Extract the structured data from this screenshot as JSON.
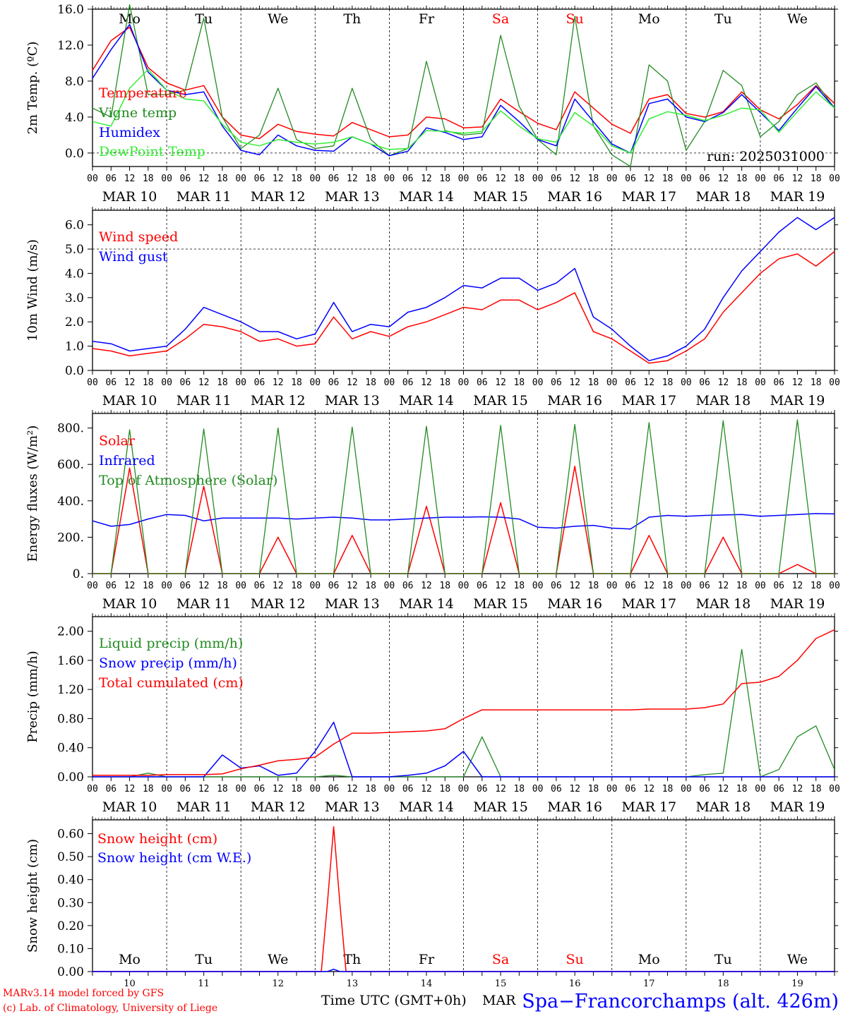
{
  "footer": {
    "model_line": "MARv3.14 model forced by GFS",
    "credit_line": "(c) Lab. of Climatology, University of Liege",
    "xlabel": "Time UTC (GMT+0h)",
    "month_overlap": "MAR",
    "station": "Spa−Francorchamps (alt. 426m)"
  },
  "days": {
    "names": [
      "Mo",
      "Tu",
      "We",
      "Th",
      "Fr",
      "Sa",
      "Su",
      "Mo",
      "Tu",
      "We"
    ],
    "weekend_color": "#ff0000",
    "dates": [
      "MAR 10",
      "MAR 11",
      "MAR 12",
      "MAR 13",
      "MAR 14",
      "MAR 15",
      "MAR 16",
      "MAR 17",
      "MAR 18",
      "MAR 19"
    ],
    "numbers": [
      "10",
      "11",
      "12",
      "13",
      "14",
      "15",
      "16",
      "17",
      "18",
      "19"
    ],
    "hour_ticks": [
      "00",
      "06",
      "12",
      "18"
    ],
    "final_tick": "00"
  },
  "chart_data": [
    {
      "type": "line",
      "ylabel": "2m Temp. (ºC)",
      "ylim": [
        -1.5,
        16
      ],
      "yticks": [
        "0.0",
        "4.0",
        "8.0",
        "12.0",
        "16.0"
      ],
      "ytick_values": [
        0,
        4,
        8,
        12,
        16
      ],
      "reference_line": 0,
      "annotation": "run: 2025031000",
      "x_hours": [
        0,
        6,
        12,
        18,
        24,
        30,
        36,
        42,
        48,
        54,
        60,
        66,
        72,
        78,
        84,
        90,
        96,
        102,
        108,
        114,
        120,
        126,
        132,
        138,
        144,
        150,
        156,
        162,
        168,
        174,
        180,
        186,
        192,
        198,
        204,
        210,
        216,
        222,
        228,
        234,
        240
      ],
      "series": [
        {
          "name": "Temperature",
          "color": "#ff0000",
          "values": [
            9.2,
            12.5,
            14.0,
            9.5,
            7.8,
            7.0,
            7.5,
            4.0,
            2.0,
            1.6,
            3.2,
            2.4,
            2.1,
            1.9,
            3.4,
            2.6,
            1.8,
            2.0,
            4.0,
            3.8,
            2.8,
            2.9,
            6.0,
            4.6,
            3.3,
            2.6,
            6.8,
            5.0,
            3.2,
            2.2,
            6.0,
            6.5,
            4.4,
            4.0,
            4.6,
            6.8,
            4.8,
            3.8,
            5.4,
            7.5,
            5.5
          ]
        },
        {
          "name": "Vigne temp",
          "color": "#228b22",
          "values": [
            5.0,
            4.0,
            16.5,
            6.5,
            6.5,
            7.0,
            15.0,
            4.0,
            0.5,
            2.0,
            7.2,
            1.5,
            0.5,
            0.8,
            7.2,
            1.5,
            -0.3,
            0.5,
            10.2,
            2.5,
            2.0,
            2.2,
            13.1,
            5.2,
            1.5,
            -0.2,
            15.2,
            3.0,
            -0.2,
            -1.5,
            9.8,
            8.0,
            0.3,
            3.5,
            9.2,
            7.5,
            1.8,
            3.5,
            6.5,
            7.8,
            5.0
          ]
        },
        {
          "name": "Humidex",
          "color": "#0000ff",
          "values": [
            8.3,
            11.5,
            14.3,
            9.0,
            7.0,
            6.5,
            6.8,
            3.0,
            0.3,
            -0.2,
            2.0,
            0.8,
            0.3,
            0.2,
            1.8,
            1.0,
            -0.3,
            0.2,
            2.8,
            2.3,
            1.5,
            1.8,
            5.3,
            3.5,
            1.5,
            0.8,
            6.0,
            3.5,
            1.0,
            0.0,
            5.5,
            6.0,
            4.0,
            3.5,
            4.5,
            6.5,
            4.5,
            2.5,
            5.0,
            7.4,
            5.0
          ]
        },
        {
          "name": "DewPoint Temp",
          "color": "#33ee33",
          "values": [
            3.5,
            3.0,
            7.2,
            9.3,
            7.0,
            6.0,
            5.8,
            3.2,
            1.2,
            0.8,
            1.5,
            1.2,
            1.0,
            1.2,
            1.8,
            1.0,
            0.4,
            0.5,
            2.5,
            2.4,
            2.2,
            2.4,
            4.7,
            3.0,
            1.6,
            1.2,
            4.5,
            3.0,
            0.8,
            0.0,
            3.8,
            4.6,
            4.2,
            3.6,
            4.2,
            5.0,
            4.8,
            2.3,
            4.6,
            6.8,
            5.0
          ]
        }
      ]
    },
    {
      "type": "line",
      "ylabel": "10m Wind (m/s)",
      "ylim": [
        0,
        6.6
      ],
      "yticks": [
        "0.0",
        "1.0",
        "2.0",
        "3.0",
        "4.0",
        "5.0",
        "6.0"
      ],
      "ytick_values": [
        0,
        1,
        2,
        3,
        4,
        5,
        6
      ],
      "reference_line": 5,
      "x_hours": [
        0,
        6,
        12,
        18,
        24,
        30,
        36,
        42,
        48,
        54,
        60,
        66,
        72,
        78,
        84,
        90,
        96,
        102,
        108,
        114,
        120,
        126,
        132,
        138,
        144,
        150,
        156,
        162,
        168,
        174,
        180,
        186,
        192,
        198,
        204,
        210,
        216,
        222,
        228,
        234,
        240
      ],
      "series": [
        {
          "name": "Wind speed",
          "color": "#ff0000",
          "values": [
            0.9,
            0.8,
            0.6,
            0.7,
            0.8,
            1.3,
            1.9,
            1.8,
            1.6,
            1.2,
            1.3,
            1.0,
            1.1,
            2.2,
            1.3,
            1.6,
            1.4,
            1.8,
            2.0,
            2.3,
            2.6,
            2.5,
            2.9,
            2.9,
            2.5,
            2.8,
            3.2,
            1.6,
            1.3,
            0.8,
            0.3,
            0.4,
            0.8,
            1.3,
            2.4,
            3.2,
            4.0,
            4.6,
            4.8,
            4.3,
            4.9
          ]
        },
        {
          "name": "Wind gust",
          "color": "#0000ff",
          "values": [
            1.2,
            1.1,
            0.8,
            0.9,
            1.0,
            1.7,
            2.6,
            2.3,
            2.0,
            1.6,
            1.6,
            1.3,
            1.5,
            2.8,
            1.6,
            1.9,
            1.8,
            2.4,
            2.6,
            3.0,
            3.5,
            3.4,
            3.8,
            3.8,
            3.3,
            3.6,
            4.2,
            2.2,
            1.7,
            1.0,
            0.4,
            0.6,
            1.0,
            1.7,
            3.0,
            4.1,
            4.9,
            5.7,
            6.3,
            5.8,
            6.3
          ]
        }
      ]
    },
    {
      "type": "line",
      "ylabel": "Energy fluxes (W/m²)",
      "ylim": [
        0,
        880
      ],
      "yticks": [
        "0.",
        "200.",
        "400.",
        "600.",
        "800."
      ],
      "ytick_values": [
        0,
        200,
        400,
        600,
        800
      ],
      "x_hours": [
        0,
        6,
        12,
        18,
        24,
        30,
        36,
        42,
        48,
        54,
        60,
        66,
        72,
        78,
        84,
        90,
        96,
        102,
        108,
        114,
        120,
        126,
        132,
        138,
        144,
        150,
        156,
        162,
        168,
        174,
        180,
        186,
        192,
        198,
        204,
        210,
        216,
        222,
        228,
        234,
        240
      ],
      "series": [
        {
          "name": "Solar",
          "color": "#ff0000",
          "values": [
            0,
            0,
            580,
            0,
            0,
            0,
            480,
            0,
            0,
            0,
            200,
            0,
            0,
            0,
            210,
            0,
            0,
            0,
            370,
            0,
            0,
            0,
            390,
            0,
            0,
            0,
            590,
            0,
            0,
            0,
            210,
            0,
            0,
            0,
            200,
            0,
            0,
            0,
            50,
            0,
            0
          ]
        },
        {
          "name": "Infrared",
          "color": "#0000ff",
          "values": [
            290,
            260,
            270,
            300,
            325,
            320,
            290,
            305,
            305,
            305,
            305,
            300,
            305,
            310,
            305,
            295,
            295,
            300,
            305,
            310,
            310,
            312,
            310,
            300,
            255,
            250,
            260,
            265,
            250,
            245,
            310,
            320,
            315,
            320,
            322,
            325,
            315,
            320,
            325,
            330,
            328
          ]
        },
        {
          "name": "Top of Atmosphere (Solar)",
          "color": "#228b22",
          "values": [
            0,
            0,
            790,
            0,
            0,
            0,
            795,
            0,
            0,
            0,
            800,
            0,
            0,
            0,
            805,
            0,
            0,
            0,
            810,
            0,
            0,
            0,
            815,
            0,
            0,
            0,
            820,
            0,
            0,
            0,
            830,
            0,
            0,
            0,
            840,
            0,
            0,
            0,
            845,
            0,
            0
          ]
        }
      ]
    },
    {
      "type": "line",
      "ylabel": "Precip (mm/h)",
      "ylim": [
        0,
        2.2
      ],
      "yticks": [
        "0.00",
        "0.40",
        "0.80",
        "1.20",
        "1.60",
        "2.00"
      ],
      "ytick_values": [
        0,
        0.4,
        0.8,
        1.2,
        1.6,
        2.0
      ],
      "x_hours": [
        0,
        6,
        12,
        18,
        24,
        30,
        36,
        42,
        48,
        54,
        60,
        66,
        72,
        78,
        84,
        90,
        96,
        102,
        108,
        114,
        120,
        126,
        132,
        138,
        144,
        150,
        156,
        162,
        168,
        174,
        180,
        186,
        192,
        198,
        204,
        210,
        216,
        222,
        228,
        234,
        240
      ],
      "series": [
        {
          "name": "Liquid precip (mm/h)",
          "color": "#228b22",
          "values": [
            0,
            0,
            0,
            0.05,
            0,
            0,
            0,
            0,
            0,
            0,
            0,
            0,
            0,
            0.02,
            0,
            0,
            0,
            0,
            0,
            0,
            0,
            0.55,
            0,
            0,
            0,
            0,
            0,
            0,
            0,
            0,
            0,
            0,
            0,
            0.03,
            0.05,
            1.75,
            0,
            0.1,
            0.55,
            0.7,
            0.1
          ]
        },
        {
          "name": "Snow precip (mm/h)",
          "color": "#0000ff",
          "values": [
            0,
            0,
            0,
            0,
            0,
            0,
            0,
            0.3,
            0.12,
            0.15,
            0.02,
            0.05,
            0.35,
            0.75,
            0,
            0,
            0,
            0.02,
            0.05,
            0.15,
            0.35,
            0,
            0,
            0,
            0,
            0,
            0,
            0,
            0,
            0,
            0,
            0,
            0,
            0,
            0,
            0,
            0,
            0,
            0,
            0,
            0
          ]
        },
        {
          "name": "Total cumulated (cm)",
          "color": "#ff0000",
          "values": [
            0.02,
            0.02,
            0.02,
            0.02,
            0.03,
            0.03,
            0.03,
            0.04,
            0.11,
            0.16,
            0.22,
            0.24,
            0.27,
            0.45,
            0.6,
            0.6,
            0.61,
            0.62,
            0.63,
            0.66,
            0.8,
            0.92,
            0.92,
            0.92,
            0.92,
            0.92,
            0.92,
            0.92,
            0.92,
            0.92,
            0.93,
            0.93,
            0.93,
            0.95,
            1.0,
            1.28,
            1.3,
            1.38,
            1.6,
            1.9,
            2.02
          ]
        }
      ]
    },
    {
      "type": "line",
      "ylabel": "Snow height (cm)",
      "ylim": [
        0,
        0.66
      ],
      "yticks": [
        "0.00",
        "0.10",
        "0.20",
        "0.30",
        "0.40",
        "0.50",
        "0.60"
      ],
      "ytick_values": [
        0,
        0.1,
        0.2,
        0.3,
        0.4,
        0.5,
        0.6
      ],
      "x_hours": [
        0,
        24,
        48,
        74,
        76,
        78,
        80,
        82,
        96,
        120,
        144,
        168,
        192,
        216,
        240
      ],
      "series": [
        {
          "name": "Snow height (cm)",
          "color": "#ff0000",
          "values": [
            0,
            0,
            0,
            0,
            0.3,
            0.63,
            0.3,
            0,
            0,
            0,
            0,
            0,
            0,
            0,
            0
          ]
        },
        {
          "name": "Snow height (cm W.E.)",
          "color": "#0000ff",
          "values": [
            0,
            0,
            0,
            0,
            0,
            0.01,
            0,
            0,
            0,
            0,
            0,
            0,
            0,
            0,
            0
          ]
        }
      ]
    }
  ]
}
